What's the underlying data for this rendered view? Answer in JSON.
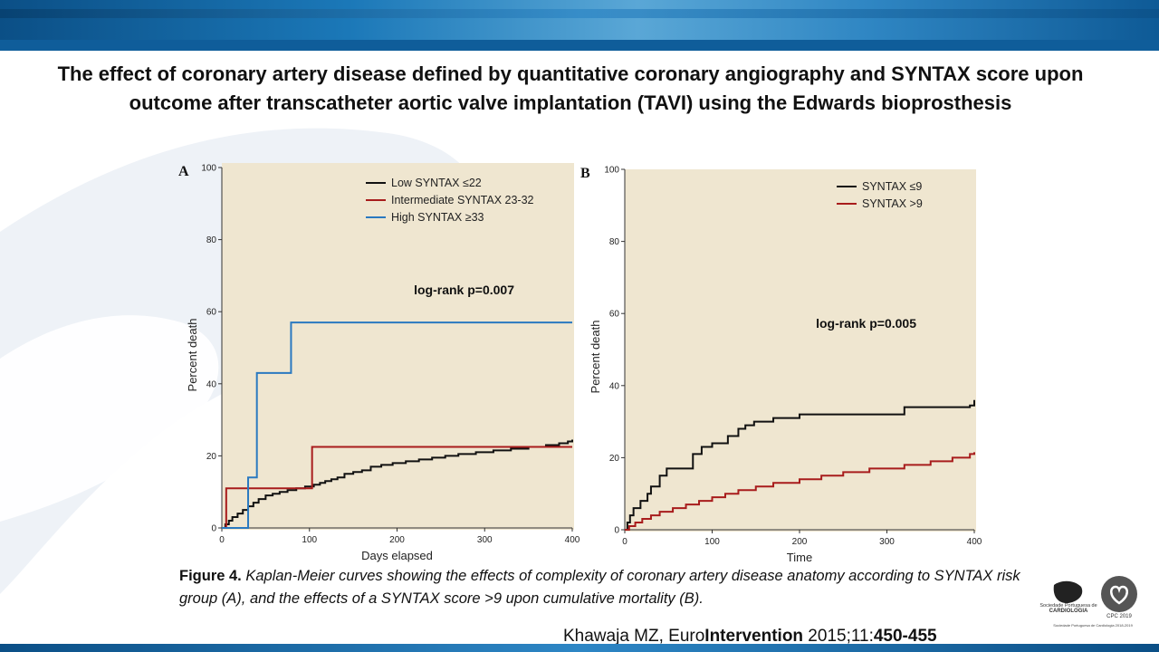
{
  "title": "The effect of coronary artery disease defined by quantitative coronary angiography and SYNTAX score upon outcome after transcatheter aortic valve implantation (TAVI) using the Edwards bioprosthesis",
  "caption": {
    "figure_label": "Figure 4.",
    "text": "Kaplan-Meier curves showing the effects of complexity of coronary artery disease anatomy according to SYNTAX risk group (A), and the effects of a SYNTAX score >9 upon cumulative mortality (B)."
  },
  "citation": {
    "author": "Khawaja MZ, Euro",
    "journal_bold": "Intervention",
    "year_vol": " 2015;11:",
    "pages": "450-455"
  },
  "logos": {
    "spc_line1": "Sociedade Portuguesa de",
    "spc_line2": "CARDIOLOGIA",
    "cpc": "CPC 2019",
    "footer": "Sociedade Portuguesa de Cardiologia 2018-2019"
  },
  "colors": {
    "plot_bg": "#efe6d0",
    "low": "#111111",
    "intermediate": "#a81c1c",
    "high": "#2a79c0",
    "banner": "#1b78b8"
  },
  "chart_data": [
    {
      "type": "line",
      "panel_label": "A",
      "xlabel": "Days elapsed",
      "ylabel": "Percent death",
      "xlim": [
        0,
        400
      ],
      "ylim": [
        0,
        100
      ],
      "xticks": [
        0,
        100,
        200,
        300,
        400
      ],
      "yticks": [
        0,
        20,
        40,
        60,
        80,
        100
      ],
      "annotation": "log-rank p=0.007",
      "legend_position": "top-right",
      "step": true,
      "series": [
        {
          "name": "Low SYNTAX ≤22",
          "color": "#111111",
          "x": [
            0,
            4,
            8,
            12,
            18,
            24,
            30,
            36,
            42,
            50,
            58,
            66,
            75,
            85,
            95,
            105,
            112,
            118,
            125,
            132,
            140,
            150,
            160,
            170,
            182,
            195,
            210,
            225,
            240,
            255,
            270,
            290,
            310,
            330,
            350,
            370,
            385,
            395,
            400
          ],
          "y": [
            0,
            1,
            2,
            3,
            4,
            5,
            6,
            7,
            8,
            9,
            9.5,
            10,
            10.5,
            11,
            11.5,
            12,
            12.5,
            13,
            13.5,
            14,
            15,
            15.5,
            16,
            17,
            17.5,
            18,
            18.5,
            19,
            19.5,
            20,
            20.5,
            21,
            21.5,
            22,
            22.5,
            23,
            23.5,
            24,
            24.5
          ]
        },
        {
          "name": "Intermediate SYNTAX 23-32",
          "color": "#a81c1c",
          "x": [
            0,
            5,
            103,
            400
          ],
          "y": [
            0,
            11,
            22.5,
            22.5
          ]
        },
        {
          "name": "High SYNTAX ≥33",
          "color": "#2a79c0",
          "x": [
            0,
            30,
            40,
            79,
            400
          ],
          "y": [
            0,
            14,
            43,
            57,
            57
          ]
        }
      ]
    },
    {
      "type": "line",
      "panel_label": "B",
      "xlabel": "Time",
      "ylabel": "Percent death",
      "xlim": [
        0,
        400
      ],
      "ylim": [
        0,
        100
      ],
      "xticks": [
        0,
        100,
        200,
        300,
        400
      ],
      "yticks": [
        0,
        20,
        40,
        60,
        80,
        100
      ],
      "annotation": "log-rank p=0.005",
      "legend_position": "top-right",
      "step": true,
      "series": [
        {
          "name": "SYNTAX ≤9",
          "color": "#111111",
          "x": [
            0,
            3,
            6,
            10,
            18,
            26,
            30,
            40,
            48,
            78,
            88,
            100,
            118,
            130,
            138,
            148,
            170,
            200,
            320,
            395,
            400
          ],
          "y": [
            0,
            2,
            4,
            6,
            8,
            10,
            12,
            15,
            17,
            21,
            23,
            24,
            26,
            28,
            29,
            30,
            31,
            32,
            34,
            34.5,
            36
          ]
        },
        {
          "name": "SYNTAX >9",
          "color": "#a81c1c",
          "x": [
            0,
            5,
            12,
            20,
            30,
            40,
            55,
            70,
            85,
            100,
            115,
            130,
            150,
            170,
            200,
            225,
            250,
            280,
            320,
            350,
            375,
            395,
            400
          ],
          "y": [
            0,
            1,
            2,
            3,
            4,
            5,
            6,
            7,
            8,
            9,
            10,
            11,
            12,
            13,
            14,
            15,
            16,
            17,
            18,
            19,
            20,
            21,
            21.5
          ]
        }
      ]
    }
  ]
}
